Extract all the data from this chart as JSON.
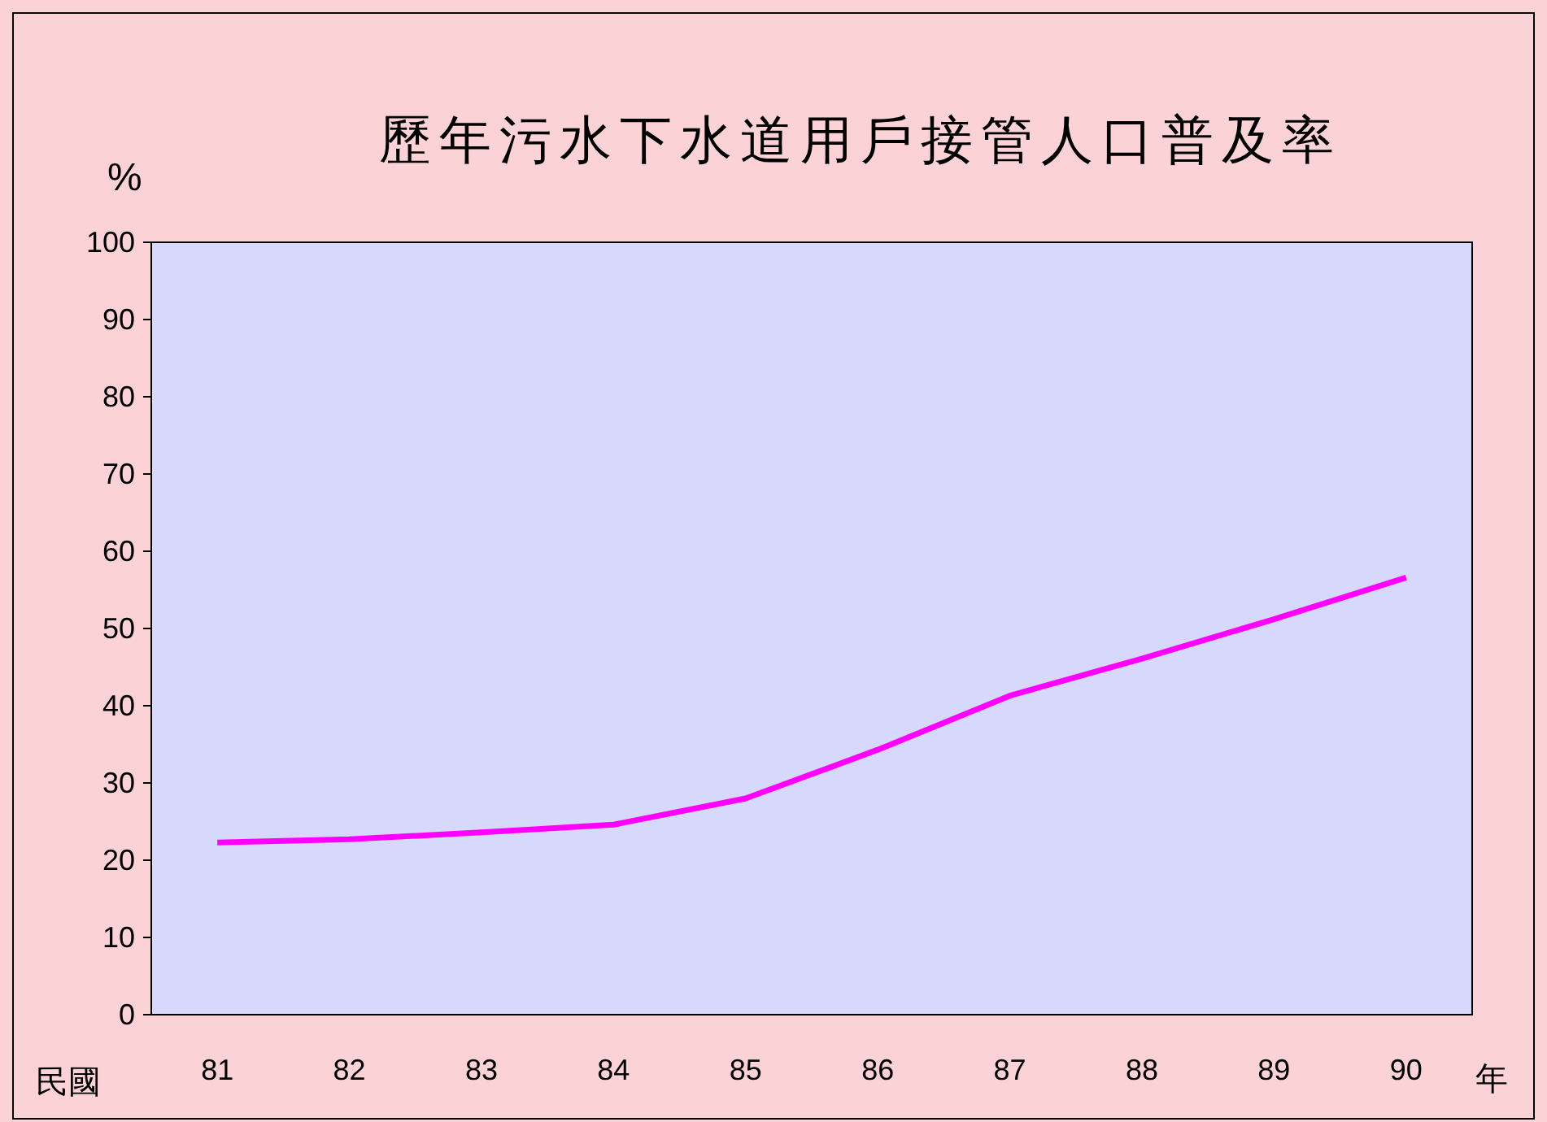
{
  "chart_data": {
    "type": "line",
    "title": "歷年污水下水道用戶接管人口普及率",
    "ylabel": "%",
    "xlabel": "年",
    "annotations": [
      "民國"
    ],
    "categories": [
      "81",
      "82",
      "83",
      "84",
      "85",
      "86",
      "87",
      "88",
      "89",
      "90"
    ],
    "series": [
      {
        "color": "#ff00ff",
        "values": [
          22.3,
          22.7,
          23.6,
          24.6,
          28.0,
          34.3,
          41.3,
          46.1,
          51.2,
          56.6
        ]
      }
    ],
    "ylim": [
      0,
      100
    ],
    "yticks": [
      0,
      10,
      20,
      30,
      40,
      50,
      60,
      70,
      80,
      90,
      100
    ],
    "grid": false,
    "marker": "none",
    "line_style": "solid"
  }
}
